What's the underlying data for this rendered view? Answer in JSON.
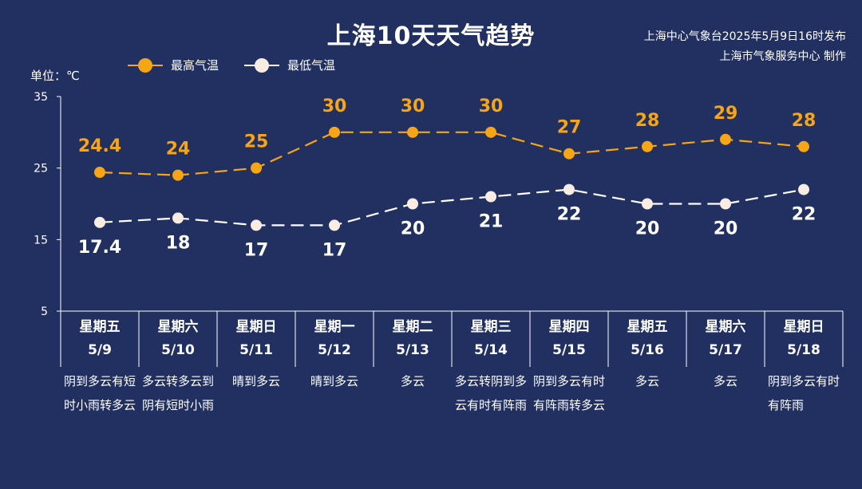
{
  "header": {
    "title": "上海10天天气趋势",
    "issuer_line1": "上海中心气象台2025年5月9日16时发布",
    "issuer_line2": "上海市气象服务中心 制作",
    "unit_label": "单位：℃"
  },
  "colors": {
    "background": "#223061",
    "high": "#F5A515",
    "low": "#FFFFFF",
    "low_point": "#F8ECE3"
  },
  "chart_data": {
    "type": "line",
    "title": "上海10天天气趋势",
    "ylabel": "单位：℃",
    "ylim": [
      5,
      35
    ],
    "yticks": [
      5,
      15,
      25,
      35
    ],
    "categories": [
      "5/9",
      "5/10",
      "5/11",
      "5/12",
      "5/13",
      "5/14",
      "5/15",
      "5/16",
      "5/17",
      "5/18"
    ],
    "series": [
      {
        "name": "最高气温",
        "values": [
          24.4,
          24,
          25,
          30,
          30,
          30,
          27,
          28,
          29,
          28
        ],
        "labels": [
          "24.4",
          "24",
          "25",
          "30",
          "30",
          "30",
          "27",
          "28",
          "29",
          "28"
        ]
      },
      {
        "name": "最低气温",
        "values": [
          17.4,
          18,
          17,
          17,
          20,
          21,
          22,
          20,
          20,
          22
        ],
        "labels": [
          "17.4",
          "18",
          "17",
          "17",
          "20",
          "21",
          "22",
          "20",
          "20",
          "22"
        ]
      }
    ]
  },
  "days": [
    {
      "weekday": "星期五",
      "date": "5/9",
      "desc": "阴到多云有短时小雨转多云"
    },
    {
      "weekday": "星期六",
      "date": "5/10",
      "desc": "多云转多云到阴有短时小雨"
    },
    {
      "weekday": "星期日",
      "date": "5/11",
      "desc": "晴到多云"
    },
    {
      "weekday": "星期一",
      "date": "5/12",
      "desc": "晴到多云"
    },
    {
      "weekday": "星期二",
      "date": "5/13",
      "desc": "多云"
    },
    {
      "weekday": "星期三",
      "date": "5/14",
      "desc": "多云转阴到多云有时有阵雨"
    },
    {
      "weekday": "星期四",
      "date": "5/15",
      "desc": "阴到多云有时有阵雨转多云"
    },
    {
      "weekday": "星期五",
      "date": "5/16",
      "desc": "多云"
    },
    {
      "weekday": "星期六",
      "date": "5/17",
      "desc": "多云"
    },
    {
      "weekday": "星期日",
      "date": "5/18",
      "desc": "阴到多云有时有阵雨"
    }
  ]
}
